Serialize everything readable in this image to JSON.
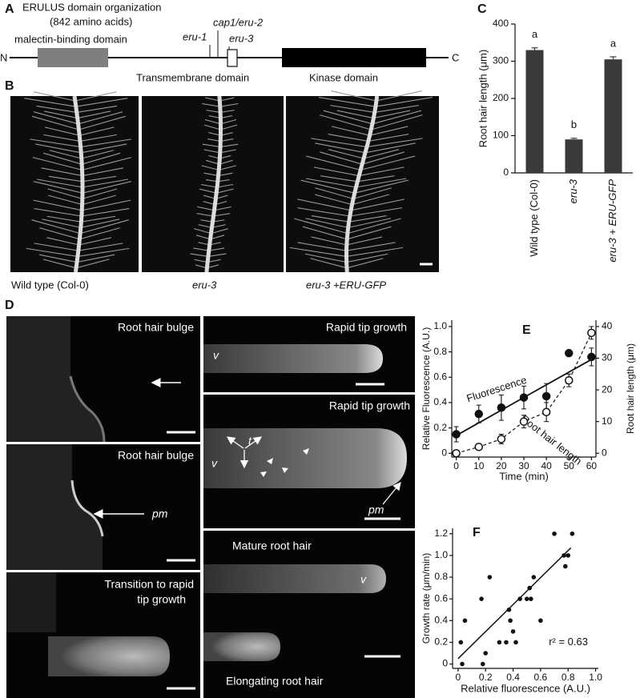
{
  "panel_labels": [
    "A",
    "B",
    "C",
    "D",
    "E",
    "F"
  ],
  "domain_diagram": {
    "title": "ERULUS domain organization",
    "subtitle": "(842 amino acids)",
    "n_terminus": "N",
    "c_terminus": "C",
    "domains": [
      "malectin-binding domain",
      "Transmembrane domain",
      "Kinase domain"
    ],
    "mutations": [
      "eru-1",
      "cap1/eru-2",
      "eru-3"
    ]
  },
  "root_images": {
    "captions": [
      "Wild type (Col-0)",
      "eru-3",
      "eru-3 +ERU-GFP"
    ]
  },
  "micrographs": [
    {
      "labels": [
        "Root hair bulge"
      ]
    },
    {
      "labels": [
        "Root hair bulge"
      ],
      "markers": [
        "pm"
      ]
    },
    {
      "labels": [
        "Transition to rapid",
        "tip growth"
      ]
    },
    {
      "labels": [
        "Rapid tip growth"
      ],
      "markers": [
        "v"
      ]
    },
    {
      "labels": [
        "Rapid tip growth"
      ],
      "markers": [
        "v",
        "t",
        "pm"
      ]
    },
    {
      "labels": [
        "Mature root hair",
        "Elongating root hair"
      ],
      "markers": [
        "v"
      ]
    }
  ],
  "chart_data": [
    {
      "type": "bar",
      "y_label": "Root hair  length (μm)",
      "categories": [
        "Wild type (Col-0)",
        "eru-3",
        "eru-3 + ERU-GFP"
      ],
      "values": [
        330,
        90,
        305
      ],
      "errors": [
        6,
        3,
        7
      ],
      "significance": [
        "a",
        "b",
        "a"
      ],
      "color": "#3a3a3a",
      "ylim": [
        0,
        400
      ],
      "yticks": [
        0,
        100,
        200,
        300,
        400
      ]
    },
    {
      "type": "line",
      "x_label": "Time (min)",
      "y_label": "Relative Fluorescence (A.U.)",
      "y2_label": "Root hair length (μm)",
      "x": [
        0,
        10,
        20,
        30,
        40,
        50,
        60
      ],
      "series": [
        {
          "name": "Fluorescence",
          "marker": "filled",
          "values": [
            0.15,
            0.31,
            0.36,
            0.44,
            0.45,
            0.79,
            0.76
          ],
          "errors": [
            0.06,
            0.07,
            0.1,
            0.09,
            0.1,
            null,
            0.07
          ],
          "trend": {
            "x": [
              0,
              60
            ],
            "values": [
              0.14,
              0.74
            ]
          }
        },
        {
          "name": "Root hair length",
          "marker": "open",
          "axis": "y2",
          "values": [
            0,
            2,
            4.5,
            10,
            13,
            23,
            38
          ],
          "errors": [
            0.5,
            1,
            1.5,
            2,
            3,
            2,
            2
          ]
        }
      ],
      "xlim": [
        -2,
        62
      ],
      "xticks": [
        0,
        10,
        20,
        30,
        40,
        50,
        60
      ],
      "ylim": [
        -0.03,
        1.05
      ],
      "yticks": [
        0,
        0.2,
        0.4,
        0.6,
        0.8,
        {
          "value": 1,
          "label": "1.0"
        }
      ],
      "y2lim": [
        -1.2,
        42
      ],
      "y2ticks": [
        0,
        10,
        20,
        30,
        40
      ]
    },
    {
      "type": "scatter",
      "x_label": "Relative fluorescence (A.U.)",
      "y_label": "Growth rate (μm/min)",
      "annotation": "r² =  0.63",
      "x": [
        0.02,
        0.03,
        0.05,
        0.18,
        0.17,
        0.2,
        0.23,
        0.3,
        0.35,
        0.37,
        0.38,
        0.4,
        0.42,
        0.45,
        0.5,
        0.52,
        0.53,
        0.55,
        0.6,
        0.7,
        0.77,
        0.78,
        0.8,
        0.83
      ],
      "values": [
        0.2,
        0,
        0.4,
        0,
        0.6,
        0.1,
        0.8,
        0.2,
        0.2,
        0.5,
        0.4,
        0.3,
        0.2,
        0.6,
        0.6,
        0.7,
        0.6,
        0.8,
        0.4,
        1.2,
        1,
        0.9,
        1,
        1.2
      ],
      "trend": {
        "x": [
          0,
          0.82
        ],
        "values": [
          0.05,
          1.07
        ]
      },
      "xlim": [
        -0.04,
        1.02
      ],
      "xticks": [
        0,
        0.2,
        0.4,
        0.6,
        0.8,
        {
          "value": 1,
          "label": "1.0"
        }
      ],
      "ylim": [
        -0.04,
        1.25
      ],
      "yticks": [
        0,
        0.2,
        0.4,
        0.6,
        0.8,
        {
          "value": 1,
          "label": "1.0"
        },
        1.2
      ]
    }
  ]
}
